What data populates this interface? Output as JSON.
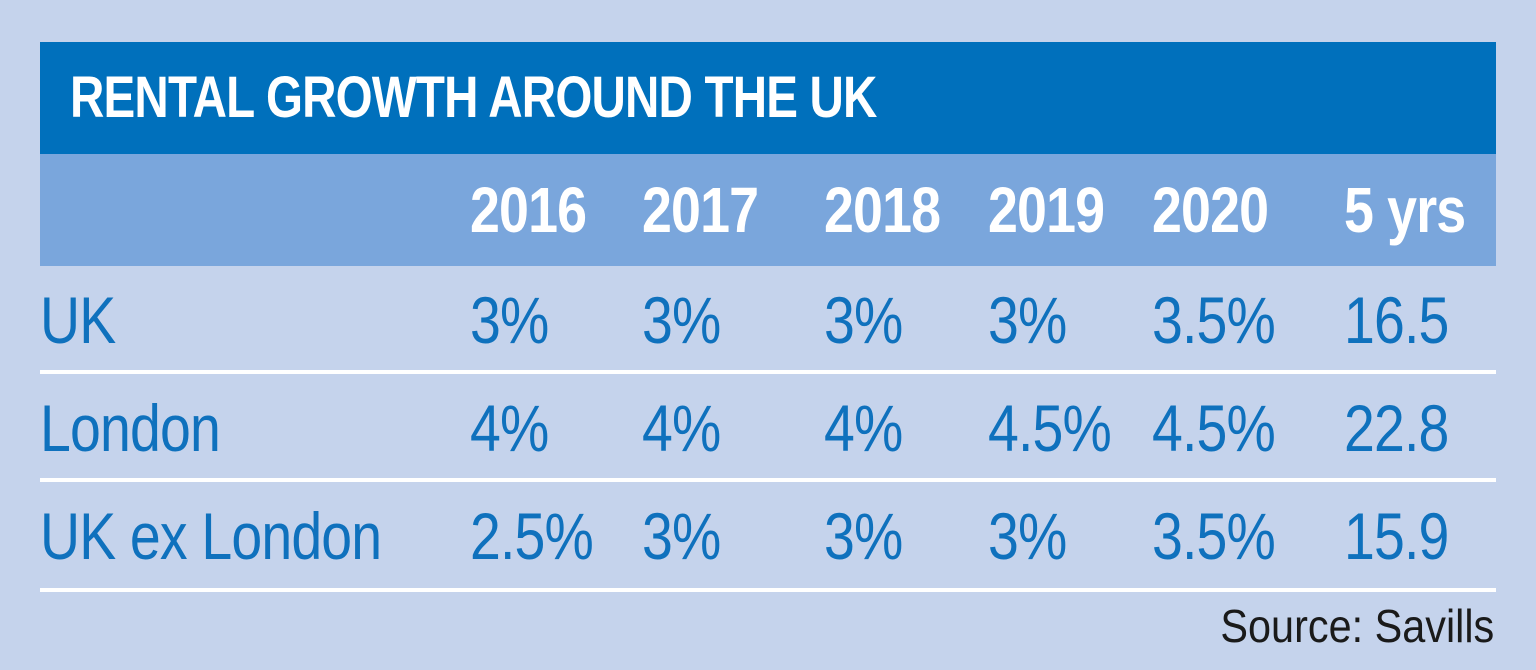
{
  "title": "RENTAL GROWTH AROUND THE UK",
  "source": "Source: Savills",
  "colors": {
    "background": "#c5d3ec",
    "title_bar": "#0070bc",
    "header_row": "#7aa6dc",
    "text_value": "#0f71bd",
    "divider": "#ffffff"
  },
  "chart_data": {
    "type": "table",
    "title": "RENTAL GROWTH AROUND THE UK",
    "columns": [
      "",
      "2016",
      "2017",
      "2018",
      "2019",
      "2020",
      "5 yrs"
    ],
    "rows": [
      {
        "label": "UK",
        "values": [
          "3%",
          "3%",
          "3%",
          "3%",
          "3.5%",
          "16.5"
        ]
      },
      {
        "label": "London",
        "values": [
          "4%",
          "4%",
          "4%",
          "4.5%",
          "4.5%",
          "22.8"
        ]
      },
      {
        "label": "UK ex London",
        "values": [
          "2.5%",
          "3%",
          "3%",
          "3%",
          "3.5%",
          "15.9"
        ]
      }
    ],
    "source": "Source: Savills"
  }
}
